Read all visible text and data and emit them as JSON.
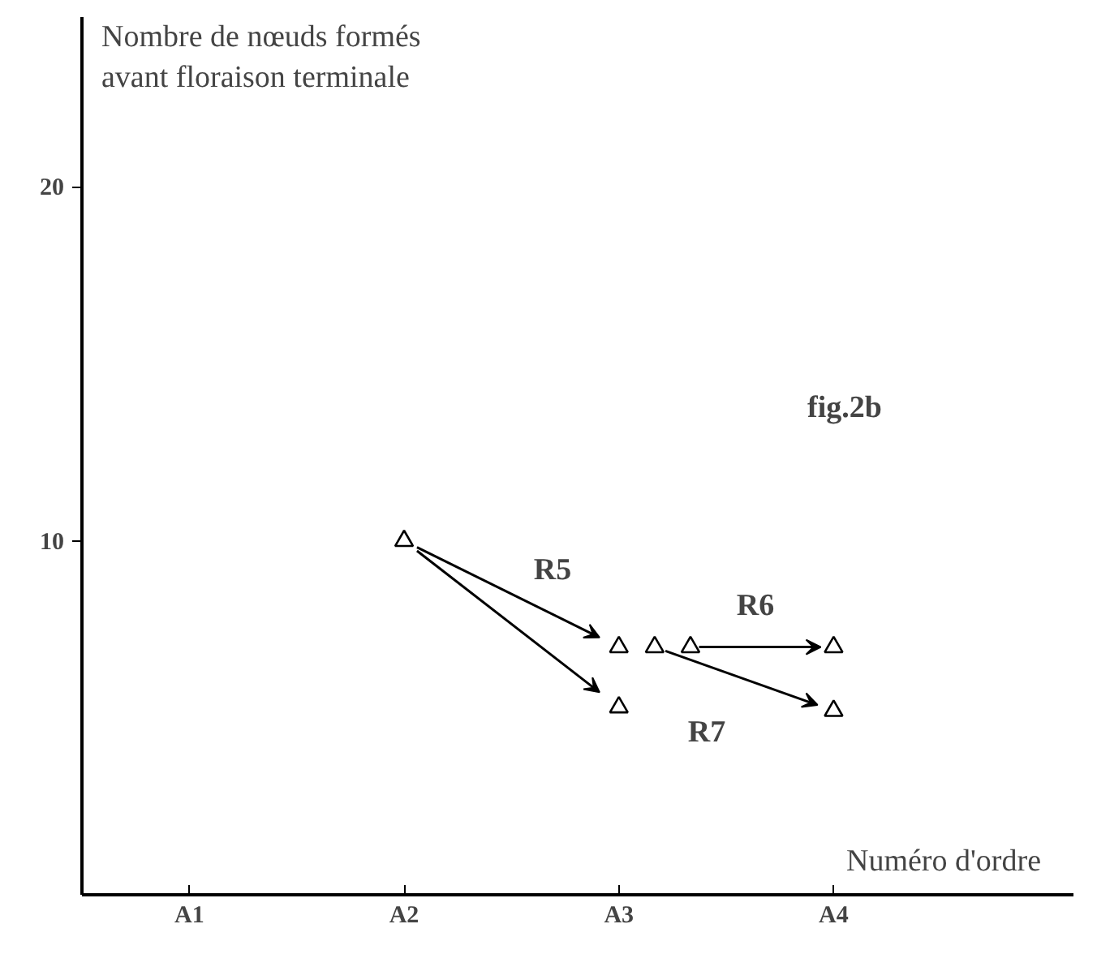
{
  "chart_data": {
    "type": "scatter",
    "ylabel": "Nombre de nœuds formés\navant floraison terminale",
    "xlabel": "Numéro d'ordre",
    "categories": [
      "A1",
      null,
      null,
      null,
      null,
      null,
      "A2",
      null,
      null,
      null,
      null,
      null,
      "A3",
      null,
      null,
      null,
      null,
      null,
      "A4"
    ],
    "series": [
      {
        "color": "#000000",
        "values": [
          null,
          null,
          null,
          null,
          null,
          null,
          10,
          null,
          null,
          null,
          null,
          null,
          7,
          7,
          7,
          null,
          null,
          null,
          7
        ]
      },
      {
        "color": "#000000",
        "values": [
          null,
          null,
          null,
          null,
          null,
          null,
          null,
          null,
          null,
          null,
          null,
          null,
          5.3,
          null,
          null,
          null,
          null,
          null,
          5.2
        ]
      }
    ],
    "ylim": [
      0,
      24.8
    ],
    "yticks": [
      10,
      20
    ],
    "marker": "triangle",
    "grid": false,
    "annotations": [
      "R5",
      "R6",
      "R7",
      "fig.2b"
    ]
  }
}
